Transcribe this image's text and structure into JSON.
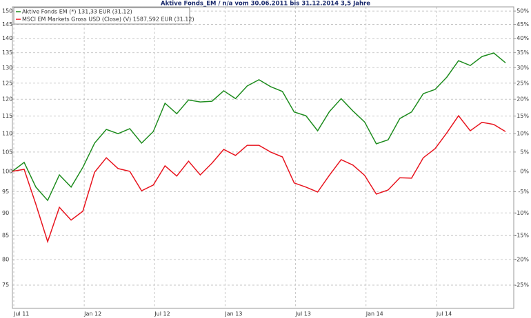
{
  "chart_data": {
    "type": "line",
    "title": "Aktive Fonds_EM / n/a vom 30.06.2011 bis 31.12.2014 3,5 Jahre",
    "categories": [
      "Jul 11",
      null,
      null,
      null,
      null,
      null,
      "Jan 12",
      null,
      null,
      null,
      null,
      null,
      "Jul 12",
      null,
      null,
      null,
      null,
      null,
      "Jan 13",
      null,
      null,
      null,
      null,
      null,
      "Jul 13",
      null,
      null,
      null,
      null,
      null,
      "Jan 14",
      null,
      null,
      null,
      null,
      null,
      "Jul 14",
      null,
      null,
      null,
      null,
      null,
      null
    ],
    "series": [
      {
        "name": "Aktive Fonds EM (*) 131,33 EUR (31.12)",
        "color": "#1e8c1e",
        "values": [
          100,
          102.3,
          96.1,
          92.9,
          99.1,
          96.1,
          101.0,
          107.4,
          111.2,
          110.0,
          111.4,
          107.4,
          110.6,
          118.8,
          115.7,
          119.8,
          119.2,
          119.4,
          122.6,
          120.2,
          124.1,
          126.1,
          123.9,
          122.4,
          116.2,
          115.1,
          110.8,
          116.3,
          120.2,
          116.5,
          113.3,
          107.2,
          108.3,
          114.3,
          116.2,
          121.7,
          123.0,
          126.9,
          132.3,
          130.7,
          133.7,
          134.9,
          131.6
        ]
      },
      {
        "name": "MSCI EM Markets Gross USD (Close) (V) 1587,592 EUR (31.12)",
        "color": "#e8141e",
        "values": [
          100,
          100.5,
          92,
          83.7,
          91.3,
          88.4,
          90.4,
          99.8,
          103.5,
          100.7,
          100,
          95.2,
          96.6,
          101.4,
          98.8,
          102.6,
          99.1,
          102.1,
          105.7,
          104.1,
          106.8,
          106.8,
          105,
          103.7,
          97.1,
          96.1,
          94.9,
          99,
          103,
          101.6,
          99,
          94.4,
          95.4,
          98.4,
          98.3,
          103.5,
          105.9,
          110.2,
          115.1,
          110.8,
          113.2,
          112.6,
          110.6
        ]
      }
    ],
    "ylim": [
      70.7,
      151.6
    ],
    "yticks": [
      75,
      80,
      85,
      90,
      95,
      100,
      105,
      110,
      115,
      120,
      125,
      130,
      135,
      140,
      145,
      150
    ],
    "y2lim": [
      -29.3,
      51.6
    ],
    "y2ticks": [
      {
        "value": -25,
        "label": "-25%"
      },
      {
        "value": -20,
        "label": "-20%"
      },
      {
        "value": -15,
        "label": "-15%"
      },
      {
        "value": -10,
        "label": "-10%"
      },
      {
        "value": -5,
        "label": "-5%"
      },
      {
        "value": 0,
        "label": "0%"
      },
      {
        "value": 5,
        "label": "5%"
      },
      {
        "value": 10,
        "label": "10%"
      },
      {
        "value": 15,
        "label": "15%"
      },
      {
        "value": 20,
        "label": "20%"
      },
      {
        "value": 25,
        "label": "25%"
      },
      {
        "value": 30,
        "label": "30%"
      },
      {
        "value": 35,
        "label": "35%"
      },
      {
        "value": 40,
        "label": "40%"
      },
      {
        "value": 45,
        "label": "45%"
      },
      {
        "value": 50,
        "label": "50%"
      }
    ],
    "log_scale": true,
    "grid": true,
    "legend": "top-left"
  }
}
